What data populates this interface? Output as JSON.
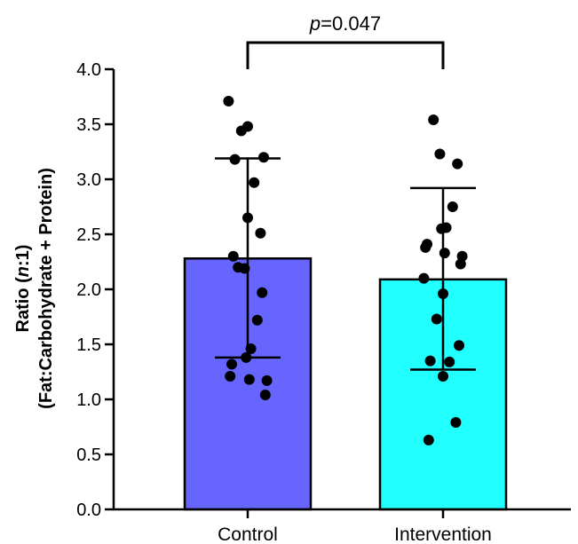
{
  "chart_data": {
    "type": "bar",
    "categories": [
      "Control",
      "Intervention"
    ],
    "ylabel_line1": "Ratio (",
    "ylabel_italic": "n",
    "ylabel_line1_end": ":1)",
    "ylabel_line2": "(Fat:Carbohydrate + Protein)",
    "ylim": [
      0,
      4.0
    ],
    "yticks": [
      "0.0",
      "0.5",
      "1.0",
      "1.5",
      "2.0",
      "2.5",
      "3.0",
      "3.5",
      "4.0"
    ],
    "ytick_values": [
      0,
      0.5,
      1.0,
      1.5,
      2.0,
      2.5,
      3.0,
      3.5,
      4.0
    ],
    "series": [
      {
        "category": "Control",
        "mean": 2.28,
        "error_low": 1.38,
        "error_high": 3.19,
        "color": "#6666ff",
        "points": [
          3.71,
          3.48,
          3.44,
          3.2,
          3.18,
          2.97,
          2.65,
          2.51,
          2.3,
          2.2,
          2.19,
          1.97,
          1.72,
          1.46,
          1.38,
          1.32,
          1.21,
          1.18,
          1.17,
          1.04
        ]
      },
      {
        "category": "Intervention",
        "mean": 2.09,
        "error_low": 1.27,
        "error_high": 2.92,
        "color": "#22ffff",
        "points": [
          3.54,
          3.23,
          3.14,
          2.75,
          2.56,
          2.55,
          2.41,
          2.38,
          2.33,
          2.3,
          2.23,
          2.1,
          1.96,
          1.73,
          1.49,
          1.35,
          1.34,
          1.21,
          0.79,
          0.63
        ]
      }
    ],
    "annotation": {
      "prefix": "p",
      "text": "=0.047"
    }
  }
}
